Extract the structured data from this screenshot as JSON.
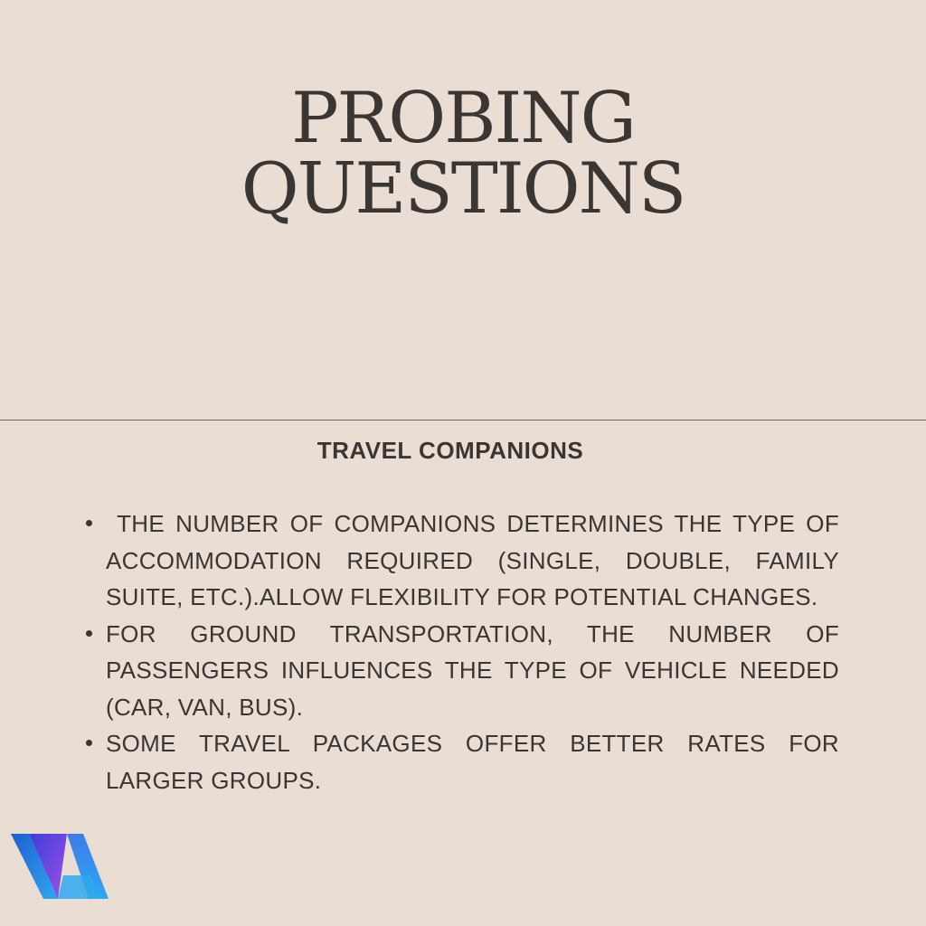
{
  "title": {
    "line1": "PROBING",
    "line2": "QUESTIONS"
  },
  "section": {
    "heading": "TRAVEL COMPANIONS",
    "bullets": [
      " THE NUMBER OF COMPANIONS DETERMINES THE TYPE OF ACCOMMODATION REQUIRED (SINGLE, DOUBLE, FAMILY SUITE, ETC.).ALLOW FLEXIBILITY FOR POTENTIAL CHANGES.",
      "FOR GROUND TRANSPORTATION, THE NUMBER OF PASSENGERS INFLUENCES THE TYPE OF VEHICLE NEEDED (CAR, VAN, BUS).",
      "SOME TRAVEL PACKAGES OFFER BETTER RATES FOR LARGER GROUPS."
    ]
  },
  "colors": {
    "background": "#e9ddd4",
    "text": "#3a3633",
    "logo_blue": "#2fa8f0",
    "logo_purple": "#8a4de0"
  },
  "logo": {
    "icon": "va-logo-icon"
  }
}
